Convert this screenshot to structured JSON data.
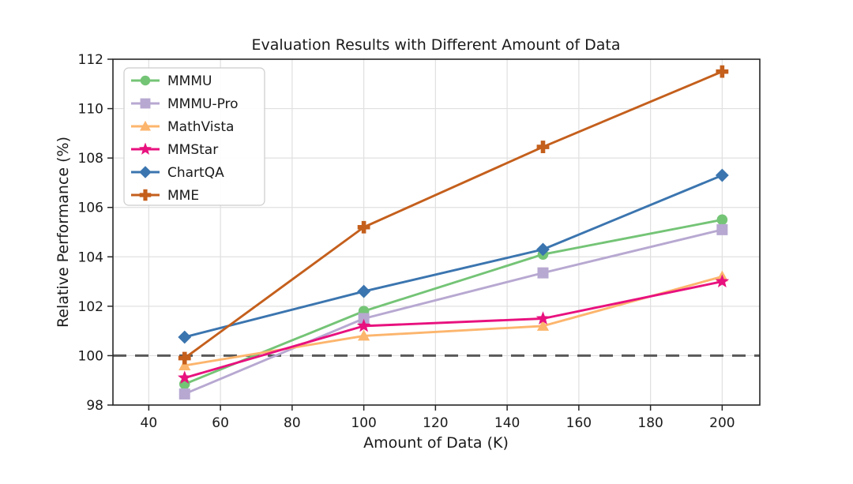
{
  "figure": {
    "background": "#ffffff"
  },
  "chart_data": {
    "type": "line",
    "title": "Evaluation Results with Different Amount of Data",
    "xlabel": "Amount of Data (K)",
    "ylabel": "Relative Performance (%)",
    "x": [
      50,
      100,
      150,
      200
    ],
    "xlim": [
      30,
      210.5
    ],
    "ylim": [
      98,
      112
    ],
    "xticks": [
      40,
      60,
      80,
      100,
      120,
      140,
      160,
      180,
      200
    ],
    "yticks": [
      98,
      100,
      102,
      104,
      106,
      108,
      110,
      112
    ],
    "grid": true,
    "legend_position": "upper-left",
    "baseline": {
      "y": 100,
      "style": "dashed",
      "color": "#595959"
    },
    "series": [
      {
        "name": "MMMU",
        "marker": "circle",
        "color": "#74c476",
        "values": [
          98.85,
          101.8,
          104.1,
          105.5
        ]
      },
      {
        "name": "MMMU-Pro",
        "marker": "square",
        "color": "#b7a8d1",
        "values": [
          98.45,
          101.5,
          103.35,
          105.1
        ]
      },
      {
        "name": "MathVista",
        "marker": "triangle",
        "color": "#fcb56d",
        "values": [
          99.6,
          100.8,
          101.2,
          103.2
        ]
      },
      {
        "name": "MMStar",
        "marker": "star",
        "color": "#e8117e",
        "values": [
          99.1,
          101.2,
          101.5,
          103.0
        ]
      },
      {
        "name": "ChartQA",
        "marker": "diamond",
        "color": "#3b75af",
        "values": [
          100.75,
          102.6,
          104.3,
          107.3
        ]
      },
      {
        "name": "MME",
        "marker": "plus",
        "color": "#c45f1c",
        "values": [
          99.9,
          105.2,
          108.45,
          111.5
        ]
      }
    ]
  },
  "style_colors": {
    "grid": "#e0e0e0",
    "spine": "#262626",
    "tick": "#262626",
    "legend_border": "#cccccc",
    "legend_background": "#ffffff"
  }
}
